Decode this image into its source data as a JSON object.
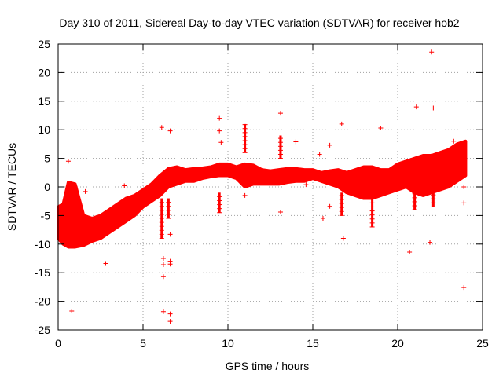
{
  "chart_data": {
    "type": "scatter",
    "title": "Day 310 of 2011, Sidereal Day-to-day VTEC variation (SDTVAR) for receiver hob2",
    "xlabel": "GPS time / hours",
    "ylabel": "SDTVAR / TECUs",
    "xlim": [
      0,
      25
    ],
    "ylim": [
      -25,
      25
    ],
    "xticks": [
      0,
      5,
      10,
      15,
      20,
      25
    ],
    "yticks": [
      -25,
      -20,
      -15,
      -10,
      -5,
      0,
      5,
      10,
      15,
      20,
      25
    ],
    "grid": true,
    "marker": "+",
    "color": "#ff0000",
    "dense_band": [
      {
        "x": 0.0,
        "low": -9.0,
        "high": -3.5
      },
      {
        "x": 0.3,
        "low": -10.0,
        "high": -3.0
      },
      {
        "x": 0.6,
        "low": -10.5,
        "high": 0.8
      },
      {
        "x": 1.0,
        "low": -10.5,
        "high": 0.5
      },
      {
        "x": 1.5,
        "low": -10.2,
        "high": -5.0
      },
      {
        "x": 2.0,
        "low": -9.5,
        "high": -5.5
      },
      {
        "x": 2.5,
        "low": -9.0,
        "high": -5.0
      },
      {
        "x": 3.0,
        "low": -8.0,
        "high": -4.0
      },
      {
        "x": 3.5,
        "low": -7.0,
        "high": -3.0
      },
      {
        "x": 4.0,
        "low": -6.0,
        "high": -2.0
      },
      {
        "x": 4.5,
        "low": -5.0,
        "high": -1.5
      },
      {
        "x": 5.0,
        "low": -3.5,
        "high": -0.5
      },
      {
        "x": 5.5,
        "low": -2.5,
        "high": 0.5
      },
      {
        "x": 6.0,
        "low": -1.5,
        "high": 2.0
      },
      {
        "x": 6.5,
        "low": 0.0,
        "high": 3.2
      },
      {
        "x": 7.0,
        "low": 0.5,
        "high": 3.5
      },
      {
        "x": 7.5,
        "low": 1.0,
        "high": 3.0
      },
      {
        "x": 8.0,
        "low": 1.0,
        "high": 3.2
      },
      {
        "x": 8.5,
        "low": 1.5,
        "high": 3.3
      },
      {
        "x": 9.0,
        "low": 1.8,
        "high": 3.5
      },
      {
        "x": 9.5,
        "low": 2.0,
        "high": 4.0
      },
      {
        "x": 10.0,
        "low": 2.0,
        "high": 4.0
      },
      {
        "x": 10.5,
        "low": 1.5,
        "high": 3.5
      },
      {
        "x": 11.0,
        "low": 0.0,
        "high": 4.0
      },
      {
        "x": 11.5,
        "low": 0.5,
        "high": 3.8
      },
      {
        "x": 12.0,
        "low": 0.5,
        "high": 3.0
      },
      {
        "x": 12.5,
        "low": 0.5,
        "high": 2.8
      },
      {
        "x": 13.0,
        "low": 0.5,
        "high": 3.0
      },
      {
        "x": 13.5,
        "low": 0.8,
        "high": 3.2
      },
      {
        "x": 14.0,
        "low": 1.0,
        "high": 3.2
      },
      {
        "x": 14.5,
        "low": 1.0,
        "high": 3.0
      },
      {
        "x": 15.0,
        "low": 1.5,
        "high": 3.0
      },
      {
        "x": 15.5,
        "low": 1.0,
        "high": 2.5
      },
      {
        "x": 16.0,
        "low": 0.5,
        "high": 2.8
      },
      {
        "x": 16.5,
        "low": 0.0,
        "high": 3.0
      },
      {
        "x": 17.0,
        "low": -1.0,
        "high": 2.5
      },
      {
        "x": 17.5,
        "low": -1.5,
        "high": 3.0
      },
      {
        "x": 18.0,
        "low": -2.0,
        "high": 3.5
      },
      {
        "x": 18.5,
        "low": -2.0,
        "high": 3.5
      },
      {
        "x": 19.0,
        "low": -1.5,
        "high": 3.0
      },
      {
        "x": 19.5,
        "low": -1.0,
        "high": 3.0
      },
      {
        "x": 20.0,
        "low": -0.5,
        "high": 4.0
      },
      {
        "x": 20.5,
        "low": 0.0,
        "high": 4.5
      },
      {
        "x": 21.0,
        "low": -1.0,
        "high": 5.0
      },
      {
        "x": 21.5,
        "low": -1.5,
        "high": 5.5
      },
      {
        "x": 22.0,
        "low": -1.0,
        "high": 5.5
      },
      {
        "x": 22.5,
        "low": -0.5,
        "high": 6.0
      },
      {
        "x": 23.0,
        "low": 0.0,
        "high": 6.5
      },
      {
        "x": 23.5,
        "low": 1.0,
        "high": 7.5
      },
      {
        "x": 24.0,
        "low": 2.0,
        "high": 8.0
      }
    ],
    "spikes": [
      {
        "x": 6.1,
        "low": -9.0,
        "high": -2.0
      },
      {
        "x": 6.5,
        "low": -5.5,
        "high": -2.0
      },
      {
        "x": 9.5,
        "low": -4.5,
        "high": -1.0
      },
      {
        "x": 11.0,
        "low": 6.0,
        "high": 11.0
      },
      {
        "x": 13.1,
        "low": 5.0,
        "high": 9.0
      },
      {
        "x": 16.7,
        "low": -5.0,
        "high": -1.0
      },
      {
        "x": 18.5,
        "low": -7.0,
        "high": -2.0
      },
      {
        "x": 21.0,
        "low": -4.0,
        "high": -1.0
      },
      {
        "x": 22.1,
        "low": -3.5,
        "high": -1.0
      },
      {
        "x": 23.8,
        "low": 5.0,
        "high": 8.0
      }
    ],
    "outliers": [
      {
        "x": 0.6,
        "y": 4.5
      },
      {
        "x": 0.8,
        "y": -21.7
      },
      {
        "x": 1.6,
        "y": -0.8
      },
      {
        "x": 2.8,
        "y": -13.4
      },
      {
        "x": 3.9,
        "y": 0.2
      },
      {
        "x": 6.1,
        "y": 10.4
      },
      {
        "x": 6.6,
        "y": 9.8
      },
      {
        "x": 6.2,
        "y": -12.5
      },
      {
        "x": 6.2,
        "y": -13.6
      },
      {
        "x": 6.2,
        "y": -15.7
      },
      {
        "x": 6.2,
        "y": -21.8
      },
      {
        "x": 6.6,
        "y": -13.0
      },
      {
        "x": 6.6,
        "y": -13.5
      },
      {
        "x": 6.6,
        "y": -22.2
      },
      {
        "x": 6.6,
        "y": -23.5
      },
      {
        "x": 6.1,
        "y": -8.6
      },
      {
        "x": 6.6,
        "y": -8.3
      },
      {
        "x": 9.5,
        "y": 12.0
      },
      {
        "x": 9.5,
        "y": 9.8
      },
      {
        "x": 9.6,
        "y": 7.8
      },
      {
        "x": 11.0,
        "y": -1.5
      },
      {
        "x": 13.1,
        "y": 12.9
      },
      {
        "x": 13.1,
        "y": -4.4
      },
      {
        "x": 14.0,
        "y": 7.9
      },
      {
        "x": 14.6,
        "y": 0.4
      },
      {
        "x": 15.4,
        "y": 5.7
      },
      {
        "x": 15.6,
        "y": -5.5
      },
      {
        "x": 16.0,
        "y": 7.3
      },
      {
        "x": 16.7,
        "y": 11.0
      },
      {
        "x": 16.8,
        "y": -9.0
      },
      {
        "x": 16.0,
        "y": -3.4
      },
      {
        "x": 19.0,
        "y": 10.3
      },
      {
        "x": 20.7,
        "y": -11.4
      },
      {
        "x": 21.1,
        "y": 14.0
      },
      {
        "x": 21.9,
        "y": -9.7
      },
      {
        "x": 22.0,
        "y": 23.6
      },
      {
        "x": 22.1,
        "y": 13.8
      },
      {
        "x": 23.3,
        "y": 8.0
      },
      {
        "x": 23.9,
        "y": 0.0
      },
      {
        "x": 23.9,
        "y": -2.8
      },
      {
        "x": 23.9,
        "y": -17.6
      }
    ]
  }
}
